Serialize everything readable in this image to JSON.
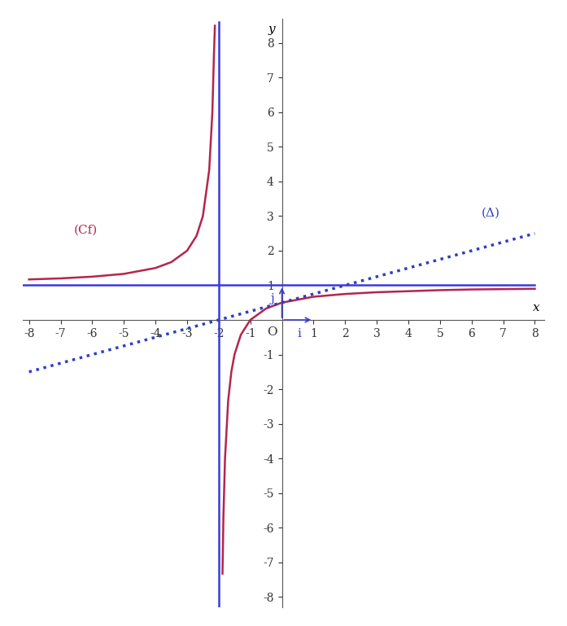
{
  "chart_data": {
    "type": "line",
    "x_label": "x",
    "y_label": "y",
    "xlim": [
      -8.2,
      8.3
    ],
    "ylim": [
      -8.3,
      8.7
    ],
    "xticks": [
      -8,
      -7,
      -6,
      -5,
      -4,
      -3,
      -2,
      -1,
      1,
      2,
      3,
      4,
      5,
      6,
      7,
      8
    ],
    "yticks": [
      -8,
      -7,
      -6,
      -5,
      -4,
      -3,
      -2,
      -1,
      1,
      2,
      3,
      4,
      5,
      6,
      7,
      8
    ],
    "grid": false,
    "series": [
      {
        "name": "(Cf)",
        "color": "#b5254a",
        "line_style": "solid",
        "x": [
          -8,
          -7,
          -6,
          -5,
          -4,
          -3.5,
          -3,
          -2.7,
          -2.5,
          -2.3,
          -2.2,
          -2.15,
          -2.12,
          null,
          -1.88,
          -1.85,
          -1.8,
          -1.7,
          -1.6,
          -1.5,
          -1.3,
          -1,
          -0.5,
          0,
          1,
          2,
          3,
          4,
          5,
          6,
          7,
          8
        ],
        "values": [
          1.17,
          1.2,
          1.25,
          1.33,
          1.5,
          1.67,
          2,
          2.43,
          3,
          4.33,
          6,
          7.67,
          8.5,
          null,
          -7.33,
          -5.67,
          -4,
          -2.33,
          -1.5,
          -1,
          -0.43,
          0,
          0.33,
          0.5,
          0.67,
          0.75,
          0.8,
          0.83,
          0.86,
          0.88,
          0.89,
          0.9
        ]
      },
      {
        "name": "(Δ)",
        "color": "#2b3fc4",
        "line_style": "dotted",
        "x": [
          -8,
          8
        ],
        "values": [
          -1.5,
          2.5
        ]
      },
      {
        "color": "#3b3bd6",
        "line_style": "solid",
        "x": [
          -2,
          -2
        ],
        "values": [
          -8.3,
          8.6
        ]
      },
      {
        "color": "#3b3bd6",
        "line_style": "solid",
        "x": [
          -8.2,
          8
        ],
        "values": [
          1,
          1
        ]
      }
    ],
    "vectors": [
      {
        "color": "#3b3bd6",
        "x": [
          0,
          1
        ],
        "y": [
          0,
          0
        ]
      },
      {
        "color": "#3b3bd6",
        "x": [
          0,
          0
        ],
        "y": [
          0,
          1
        ]
      }
    ],
    "annotations": [
      {
        "text": "(Cf)",
        "x": -6.2,
        "y": 2.6,
        "color": "#b5254a"
      },
      {
        "text": "(Δ)",
        "x": 6.6,
        "y": 3.1,
        "color": "#2b3fc4"
      },
      {
        "text": "O",
        "x": -0.3,
        "y": -0.35,
        "color": "#333333"
      },
      {
        "text": "i",
        "x": 0.55,
        "y": -0.4,
        "color": "#3b3bd6"
      },
      {
        "text": "j",
        "x": -0.3,
        "y": 0.6,
        "color": "#3b3bd6"
      }
    ]
  }
}
